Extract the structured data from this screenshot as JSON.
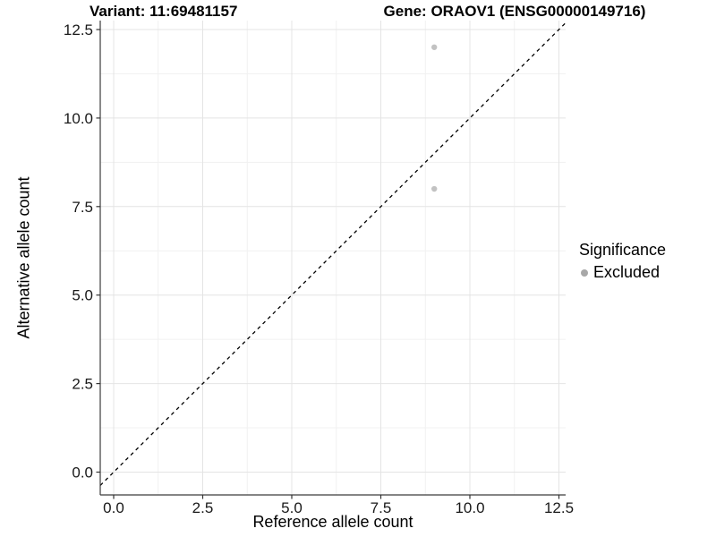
{
  "header": {
    "title_left": "Variant: 11:69481157",
    "title_right": "Gene: ORAOV1 (ENSG00000149716)"
  },
  "chart_data": {
    "type": "scatter",
    "title_left": "Variant: 11:69481157",
    "title_right": "Gene: ORAOV1 (ENSG00000149716)",
    "xlabel": "Reference allele count",
    "ylabel": "Alternative allele count",
    "xticks": [
      0.0,
      2.5,
      5.0,
      7.5,
      10.0,
      12.5
    ],
    "yticks": [
      0.0,
      2.5,
      5.0,
      7.5,
      10.0,
      12.5
    ],
    "xtick_labels": [
      "0.0",
      "2.5",
      "5.0",
      "7.5",
      "10.0",
      "12.5"
    ],
    "ytick_labels": [
      "0.0",
      "2.5",
      "5.0",
      "7.5",
      "10.0",
      "12.5"
    ],
    "xlim": [
      -0.38,
      12.69
    ],
    "ylim": [
      -0.65,
      12.75
    ],
    "grid": "major+minor",
    "series": [
      {
        "name": "Excluded",
        "color": "#c2c2c2",
        "points": [
          [
            9,
            12
          ],
          [
            9,
            8
          ]
        ]
      }
    ],
    "identity_line": {
      "slope": 1,
      "intercept": 0,
      "style": "dashed",
      "color": "#000000"
    },
    "legend": {
      "title": "Significance",
      "position": "right",
      "items": [
        {
          "label": "Excluded",
          "color": "#a8a8a8"
        }
      ]
    }
  },
  "colors": {
    "background": "#ffffff",
    "grid_major": "#e4e4e4",
    "grid_minor": "#f1f1f1",
    "axis_line": "#3c3c3c",
    "tick_mark": "#333333",
    "tick_label": "#1a1a1a",
    "text": "#000000"
  }
}
